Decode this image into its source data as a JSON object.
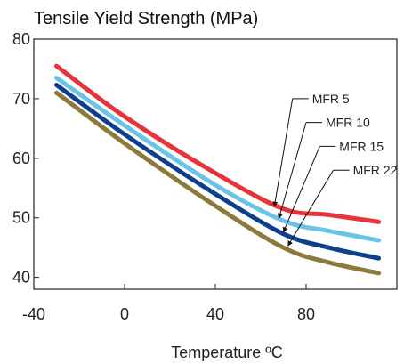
{
  "chart_data": {
    "type": "line",
    "title": "Tensile Yield Strength (MPa)",
    "xlabel": "Temperature ºC",
    "ylabel": "",
    "xlim": [
      -40,
      120
    ],
    "ylim": [
      38,
      80
    ],
    "x_ticks": [
      "-40",
      "0",
      "40",
      "80"
    ],
    "y_ticks": [
      "40",
      "50",
      "60",
      "70",
      "80"
    ],
    "grid": false,
    "series": [
      {
        "name": "MFR 5",
        "color": "#e8333a",
        "points": [
          [
            -30,
            75.5
          ],
          [
            0,
            67
          ],
          [
            40,
            57.5
          ],
          [
            70,
            51.5
          ],
          [
            90,
            50.5
          ],
          [
            112,
            49.3
          ]
        ]
      },
      {
        "name": "MFR 10",
        "color": "#6cc3e8",
        "points": [
          [
            -30,
            73.5
          ],
          [
            0,
            65.5
          ],
          [
            40,
            55.5
          ],
          [
            70,
            49.5
          ],
          [
            90,
            47.8
          ],
          [
            112,
            46.2
          ]
        ]
      },
      {
        "name": "MFR 15",
        "color": "#0d3f8f",
        "points": [
          [
            -30,
            72.3
          ],
          [
            0,
            64
          ],
          [
            40,
            54
          ],
          [
            70,
            47.3
          ],
          [
            90,
            45
          ],
          [
            112,
            43.2
          ]
        ]
      },
      {
        "name": "MFR 22",
        "color": "#8b7a3a",
        "points": [
          [
            -30,
            71
          ],
          [
            0,
            62.5
          ],
          [
            40,
            52
          ],
          [
            70,
            45
          ],
          [
            90,
            42.5
          ],
          [
            112,
            40.7
          ]
        ]
      }
    ],
    "annotations": [
      {
        "label": "MFR 5",
        "target": [
          66,
          51.9
        ],
        "anchor": [
          74,
          70
        ]
      },
      {
        "label": "MFR 10",
        "target": [
          68,
          49.9
        ],
        "anchor": [
          80,
          66
        ]
      },
      {
        "label": "MFR 15",
        "target": [
          70,
          47.6
        ],
        "anchor": [
          86,
          62
        ]
      },
      {
        "label": "MFR 22",
        "target": [
          72,
          45.3
        ],
        "anchor": [
          92,
          58
        ]
      }
    ]
  }
}
